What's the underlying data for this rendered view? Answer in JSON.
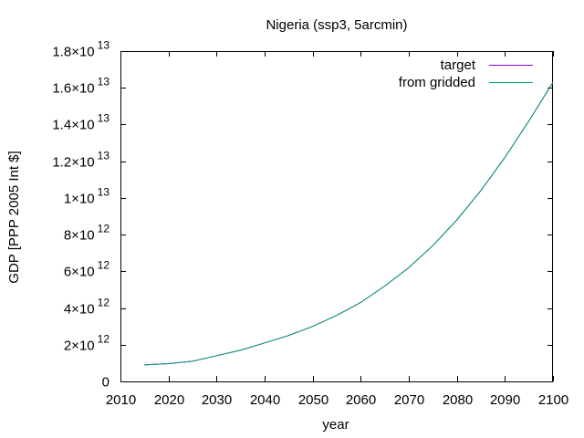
{
  "chart_data": {
    "type": "line",
    "title": "Nigeria (ssp3, 5arcmin)",
    "xlabel": "year",
    "ylabel": "GDP [PPP 2005 Int $]",
    "xlim": [
      2010,
      2100
    ],
    "ylim": [
      0,
      18000000000000.0
    ],
    "xticks": [
      2010,
      2020,
      2030,
      2040,
      2050,
      2060,
      2070,
      2080,
      2090,
      2100
    ],
    "yticks": [
      {
        "value": 0,
        "mant": "0",
        "exp": ""
      },
      {
        "value": 2000000000000.0,
        "mant": "2×10",
        "exp": "12"
      },
      {
        "value": 4000000000000.0,
        "mant": "4×10",
        "exp": "12"
      },
      {
        "value": 6000000000000.0,
        "mant": "6×10",
        "exp": "12"
      },
      {
        "value": 8000000000000.0,
        "mant": "8×10",
        "exp": "12"
      },
      {
        "value": 10000000000000.0,
        "mant": "1×10",
        "exp": "13"
      },
      {
        "value": 12000000000000.0,
        "mant": "1.2×10",
        "exp": "13"
      },
      {
        "value": 14000000000000.0,
        "mant": "1.4×10",
        "exp": "13"
      },
      {
        "value": 16000000000000.0,
        "mant": "1.6×10",
        "exp": "13"
      },
      {
        "value": 18000000000000.0,
        "mant": "1.8×10",
        "exp": "13"
      }
    ],
    "grid": false,
    "legend_position": "top-right",
    "x": [
      2015,
      2020,
      2025,
      2030,
      2035,
      2040,
      2045,
      2050,
      2055,
      2060,
      2065,
      2070,
      2075,
      2080,
      2085,
      2090,
      2095,
      2100
    ],
    "series": [
      {
        "name": "target",
        "color": "#9400d3",
        "values": [
          900000000000.0,
          970000000000.0,
          1100000000000.0,
          1400000000000.0,
          1700000000000.0,
          2100000000000.0,
          2500000000000.0,
          3000000000000.0,
          3600000000000.0,
          4300000000000.0,
          5200000000000.0,
          6200000000000.0,
          7400000000000.0,
          8800000000000.0,
          10400000000000.0,
          12200000000000.0,
          14200000000000.0,
          16300000000000.0
        ]
      },
      {
        "name": "from gridded",
        "color": "#009e73",
        "values": [
          900000000000.0,
          970000000000.0,
          1100000000000.0,
          1400000000000.0,
          1700000000000.0,
          2100000000000.0,
          2500000000000.0,
          3000000000000.0,
          3600000000000.0,
          4300000000000.0,
          5200000000000.0,
          6200000000000.0,
          7400000000000.0,
          8800000000000.0,
          10400000000000.0,
          12200000000000.0,
          14200000000000.0,
          16300000000000.0
        ]
      }
    ]
  }
}
